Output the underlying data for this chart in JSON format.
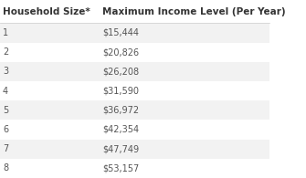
{
  "col1_header": "Household Size*",
  "col2_header": "Maximum Income Level (Per Year)",
  "rows": [
    [
      "1",
      "$15,444"
    ],
    [
      "2",
      "$20,826"
    ],
    [
      "3",
      "$26,208"
    ],
    [
      "4",
      "$31,590"
    ],
    [
      "5",
      "$36,972"
    ],
    [
      "6",
      "$42,354"
    ],
    [
      "7",
      "$47,749"
    ],
    [
      "8",
      "$53,157"
    ]
  ],
  "header_bg": "#ffffff",
  "row_bg_odd": "#f2f2f2",
  "row_bg_even": "#ffffff",
  "header_text_color": "#333333",
  "row_text_color": "#555555",
  "header_fontsize": 7.5,
  "row_fontsize": 7.0,
  "background_color": "#ffffff",
  "separator_color": "#cccccc"
}
